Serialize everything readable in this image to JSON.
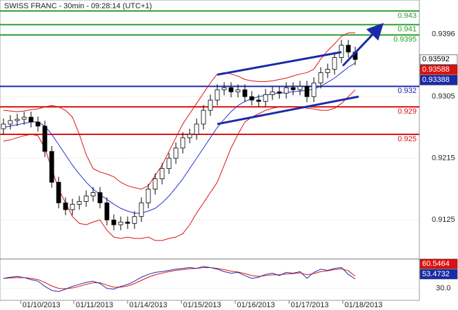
{
  "chart_data": {
    "type": "candlestick",
    "title": "SWISS FRANC - 30min - 09:28:14 (UTC+1)",
    "x_labels": [
      "01/10/2013",
      "01/11/2013",
      "01/14/2013",
      "01/15/2013",
      "01/16/2013",
      "01/17/2013",
      "01/18/2013"
    ],
    "ylim": [
      0.9069,
      0.9446
    ],
    "yticks": [
      0.9396,
      0.9305,
      0.9215,
      0.9125
    ],
    "grid": true,
    "open": [
      0.9258,
      0.9265,
      0.927,
      0.9272,
      0.9275,
      0.9268,
      0.9262,
      0.9225,
      0.918,
      0.915,
      0.914,
      0.9148,
      0.9152,
      0.916,
      0.9165,
      0.915,
      0.9125,
      0.9118,
      0.9122,
      0.912,
      0.913,
      0.915,
      0.917,
      0.9185,
      0.92,
      0.9215,
      0.923,
      0.9245,
      0.925,
      0.9265,
      0.9285,
      0.93,
      0.9315,
      0.9318,
      0.9312,
      0.9315,
      0.9305,
      0.93,
      0.9298,
      0.9308,
      0.9312,
      0.931,
      0.9318,
      0.9315,
      0.932,
      0.9305,
      0.9325,
      0.934,
      0.9345,
      0.9362,
      0.938,
      0.937
    ],
    "high": [
      0.9273,
      0.9278,
      0.928,
      0.9283,
      0.9283,
      0.9276,
      0.927,
      0.9233,
      0.9188,
      0.9158,
      0.9156,
      0.916,
      0.9168,
      0.9173,
      0.9173,
      0.9158,
      0.9133,
      0.913,
      0.913,
      0.9138,
      0.9158,
      0.9178,
      0.9193,
      0.9208,
      0.9223,
      0.9238,
      0.9253,
      0.9258,
      0.9273,
      0.9293,
      0.9308,
      0.9323,
      0.9326,
      0.9326,
      0.9323,
      0.9323,
      0.9313,
      0.9308,
      0.9316,
      0.932,
      0.932,
      0.9326,
      0.9326,
      0.9328,
      0.9328,
      0.9333,
      0.9348,
      0.9353,
      0.937,
      0.9388,
      0.9388,
      0.9378
    ],
    "low": [
      0.925,
      0.9257,
      0.9262,
      0.9264,
      0.926,
      0.9254,
      0.9217,
      0.9172,
      0.9142,
      0.9132,
      0.9132,
      0.914,
      0.9144,
      0.9152,
      0.9142,
      0.9117,
      0.911,
      0.911,
      0.9112,
      0.9112,
      0.9122,
      0.9142,
      0.9162,
      0.9177,
      0.9192,
      0.9207,
      0.9222,
      0.9237,
      0.9242,
      0.9257,
      0.9277,
      0.9292,
      0.9307,
      0.9304,
      0.9304,
      0.9297,
      0.9292,
      0.929,
      0.929,
      0.93,
      0.9302,
      0.9302,
      0.9307,
      0.9307,
      0.9297,
      0.9297,
      0.9317,
      0.9332,
      0.9337,
      0.9354,
      0.9362,
      0.9351
    ],
    "close": [
      0.9265,
      0.927,
      0.9272,
      0.9275,
      0.9268,
      0.9262,
      0.9225,
      0.918,
      0.915,
      0.914,
      0.9148,
      0.9152,
      0.916,
      0.9165,
      0.915,
      0.9125,
      0.9118,
      0.9122,
      0.912,
      0.913,
      0.915,
      0.917,
      0.9185,
      0.92,
      0.9215,
      0.923,
      0.9245,
      0.925,
      0.9265,
      0.9285,
      0.93,
      0.9315,
      0.9318,
      0.9312,
      0.9315,
      0.9305,
      0.93,
      0.9298,
      0.9308,
      0.9312,
      0.931,
      0.9318,
      0.9315,
      0.932,
      0.9305,
      0.9325,
      0.934,
      0.9345,
      0.9362,
      0.938,
      0.937,
      0.93592
    ],
    "overlays": [
      {
        "color": "#2233cc",
        "values": [
          0.926,
          0.9262,
          0.9264,
          0.9266,
          0.9268,
          0.9268,
          0.9262,
          0.925,
          0.9235,
          0.922,
          0.9205,
          0.9192,
          0.918,
          0.917,
          0.9162,
          0.9155,
          0.9148,
          0.9142,
          0.9138,
          0.9135,
          0.9135,
          0.9138,
          0.9142,
          0.915,
          0.916,
          0.9172,
          0.9185,
          0.92,
          0.9215,
          0.923,
          0.9245,
          0.926,
          0.9272,
          0.9283,
          0.9292,
          0.9298,
          0.9302,
          0.9305,
          0.9307,
          0.9309,
          0.931,
          0.9311,
          0.9312,
          0.9313,
          0.9314,
          0.9316,
          0.932,
          0.9326,
          0.9332,
          0.934,
          0.9348,
          0.9354
        ]
      },
      {
        "color": "#dd1111",
        "values": [
          0.9285,
          0.9284,
          0.9283,
          0.9284,
          0.9286,
          0.9287,
          0.929,
          0.9292,
          0.929,
          0.9285,
          0.9275,
          0.925,
          0.922,
          0.92,
          0.9195,
          0.9192,
          0.9188,
          0.918,
          0.9175,
          0.9172,
          0.917,
          0.9175,
          0.919,
          0.9205,
          0.9225,
          0.9245,
          0.9265,
          0.928,
          0.9295,
          0.931,
          0.9325,
          0.9338,
          0.934,
          0.9338,
          0.9335,
          0.933,
          0.9328,
          0.9327,
          0.9327,
          0.9328,
          0.933,
          0.9332,
          0.9335,
          0.9338,
          0.934,
          0.9345,
          0.936,
          0.9372,
          0.9382,
          0.9393,
          0.9398,
          0.9398
        ]
      },
      {
        "color": "#dd1111",
        "values": [
          0.924,
          0.9242,
          0.9245,
          0.9248,
          0.925,
          0.9248,
          0.923,
          0.92,
          0.917,
          0.915,
          0.913,
          0.912,
          0.9118,
          0.9122,
          0.9125,
          0.911,
          0.91,
          0.9098,
          0.91,
          0.9098,
          0.9098,
          0.91,
          0.9095,
          0.9095,
          0.9098,
          0.91,
          0.9105,
          0.9118,
          0.9135,
          0.915,
          0.9165,
          0.918,
          0.9205,
          0.923,
          0.925,
          0.9268,
          0.9275,
          0.928,
          0.9285,
          0.9288,
          0.929,
          0.929,
          0.929,
          0.929,
          0.9288,
          0.9287,
          0.9285,
          0.9285,
          0.9288,
          0.9295,
          0.9305,
          0.9315
        ]
      }
    ],
    "levels": [
      {
        "value": 0.943,
        "color": "#2e9e2e"
      },
      {
        "value": 0.941,
        "color": "#2e9e2e"
      },
      {
        "value": 0.9395,
        "color": "#2e9e2e"
      },
      {
        "value": 0.932,
        "color": "#1a2aa8"
      },
      {
        "value": 0.929,
        "color": "#dd1111"
      },
      {
        "value": 0.925,
        "color": "#dd1111"
      }
    ],
    "trendlines": [
      {
        "color": "#1a2aa8",
        "x": [
          31,
          49
        ],
        "y": [
          0.9337,
          0.937
        ]
      },
      {
        "color": "#1a2aa8",
        "x": [
          31,
          51.5
        ],
        "y": [
          0.9265,
          0.9305
        ]
      }
    ],
    "arrow": {
      "color": "#1a2aa8",
      "x": [
        49.2,
        54.5
      ],
      "y": [
        0.935,
        0.9406
      ]
    },
    "price_labels": [
      {
        "value": 0.93588,
        "color": "#dd1111"
      },
      {
        "value": 0.93388,
        "color": "#1a2aa8"
      }
    ],
    "oscillator": {
      "ylim": [
        0,
        100
      ],
      "yticks": [
        {
          "value": 30,
          "label": "30.0"
        }
      ],
      "series": [
        {
          "color": "#dd1111",
          "values": [
            55,
            56,
            57,
            57,
            55,
            52,
            45,
            36,
            30,
            29,
            31,
            35,
            40,
            44,
            44,
            38,
            33,
            33,
            36,
            42,
            50,
            58,
            64,
            68,
            72,
            75,
            77,
            79,
            80,
            82,
            82,
            80,
            77,
            73,
            71,
            67,
            62,
            60,
            62,
            64,
            64,
            66,
            67,
            69,
            64,
            67,
            72,
            74,
            77,
            79,
            74,
            60.5464
          ]
        },
        {
          "color": "#1a2aa8",
          "values": [
            55,
            58,
            60,
            57,
            52,
            48,
            35,
            25,
            22,
            28,
            35,
            40,
            45,
            48,
            42,
            30,
            28,
            35,
            40,
            48,
            58,
            65,
            70,
            72,
            75,
            78,
            80,
            82,
            80,
            85,
            82,
            78,
            72,
            68,
            70,
            62,
            55,
            58,
            65,
            68,
            62,
            70,
            68,
            72,
            55,
            70,
            78,
            75,
            80,
            82,
            65,
            53.4732
          ]
        }
      ]
    }
  }
}
